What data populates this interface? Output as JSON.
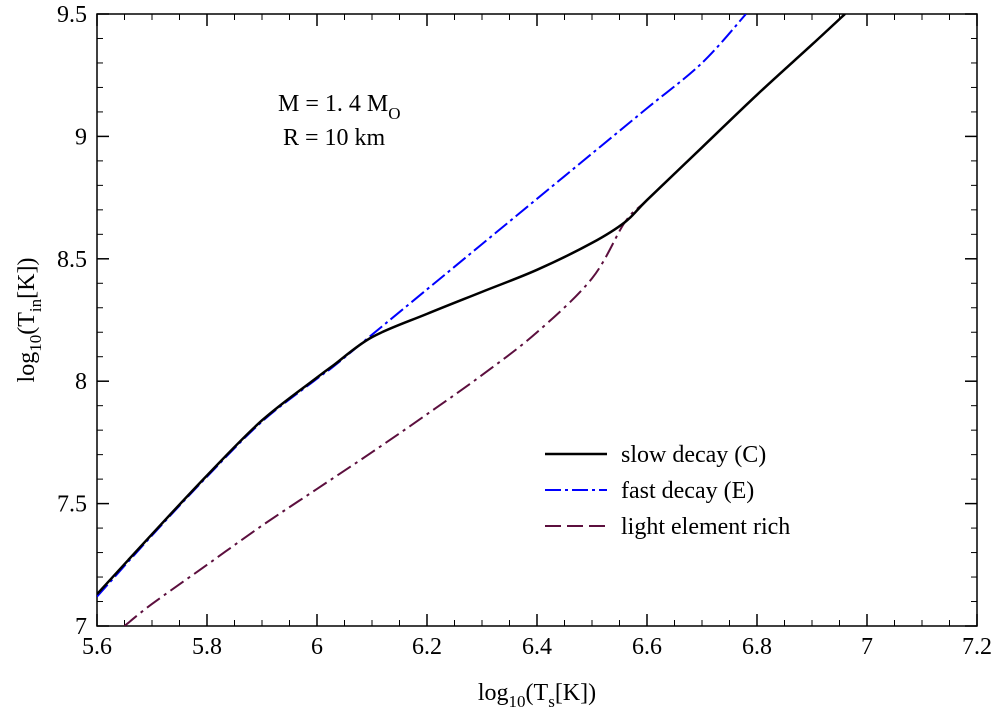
{
  "chart_data": {
    "type": "line",
    "xlabel": {
      "base": "log",
      "sub1": "10",
      "mid": "(T",
      "sub2": "s",
      "end": "[K])"
    },
    "ylabel": {
      "base": "log",
      "sub1": "10",
      "mid": "(T",
      "sub2": "in",
      "end": "[K])"
    },
    "xlim": [
      5.6,
      7.2
    ],
    "ylim": [
      7,
      9.5
    ],
    "xticks": [
      5.6,
      5.8,
      6,
      6.2,
      6.4,
      6.6,
      6.8,
      7,
      7.2
    ],
    "xtick_labels": [
      "5.6",
      "5.8",
      "6",
      "6.2",
      "6.4",
      "6.6",
      "6.8",
      "7",
      "7.2"
    ],
    "yticks": [
      7,
      7.5,
      8,
      8.5,
      9,
      9.5
    ],
    "ytick_labels": [
      "7",
      "7.5",
      "8",
      "8.5",
      "9",
      "9.5"
    ],
    "grid": false,
    "legend_position": "lower-right",
    "annotations": [
      {
        "text": "M = 1. 4 M",
        "sub": "O"
      },
      {
        "text": "R = 10 km",
        "sub": ""
      }
    ],
    "series": [
      {
        "name": "slow decay (C)",
        "color": "#000000",
        "style": "solid",
        "x": [
          5.6,
          5.7,
          5.8,
          5.9,
          6.0,
          6.03,
          6.1,
          6.2,
          6.3,
          6.4,
          6.5,
          6.56,
          6.6,
          6.7,
          6.8,
          6.9,
          6.96
        ],
        "y": [
          7.13,
          7.375,
          7.615,
          7.84,
          8.015,
          8.065,
          8.18,
          8.275,
          8.365,
          8.455,
          8.565,
          8.65,
          8.74,
          8.955,
          9.17,
          9.375,
          9.5
        ]
      },
      {
        "name": "fast decay (E)",
        "color": "#0000ff",
        "style": "dash-dot",
        "x": [
          5.6,
          5.7,
          5.8,
          5.9,
          6.0,
          6.03,
          6.1,
          6.2,
          6.3,
          6.4,
          6.5,
          6.6,
          6.7,
          6.78
        ],
        "y": [
          7.12,
          7.37,
          7.61,
          7.835,
          8.01,
          8.06,
          8.19,
          8.375,
          8.56,
          8.745,
          8.93,
          9.115,
          9.3,
          9.5
        ]
      },
      {
        "name": "light element rich",
        "color": "#5c0f3e",
        "style": "dash-dot",
        "x": [
          5.65,
          5.7,
          5.8,
          5.9,
          6.0,
          6.1,
          6.2,
          6.3,
          6.4,
          6.5,
          6.56,
          6.6,
          6.7,
          6.8,
          6.9,
          6.96
        ],
        "y": [
          7.0,
          7.09,
          7.25,
          7.41,
          7.56,
          7.71,
          7.865,
          8.025,
          8.2,
          8.42,
          8.65,
          8.74,
          8.955,
          9.17,
          9.375,
          9.5
        ]
      }
    ]
  }
}
